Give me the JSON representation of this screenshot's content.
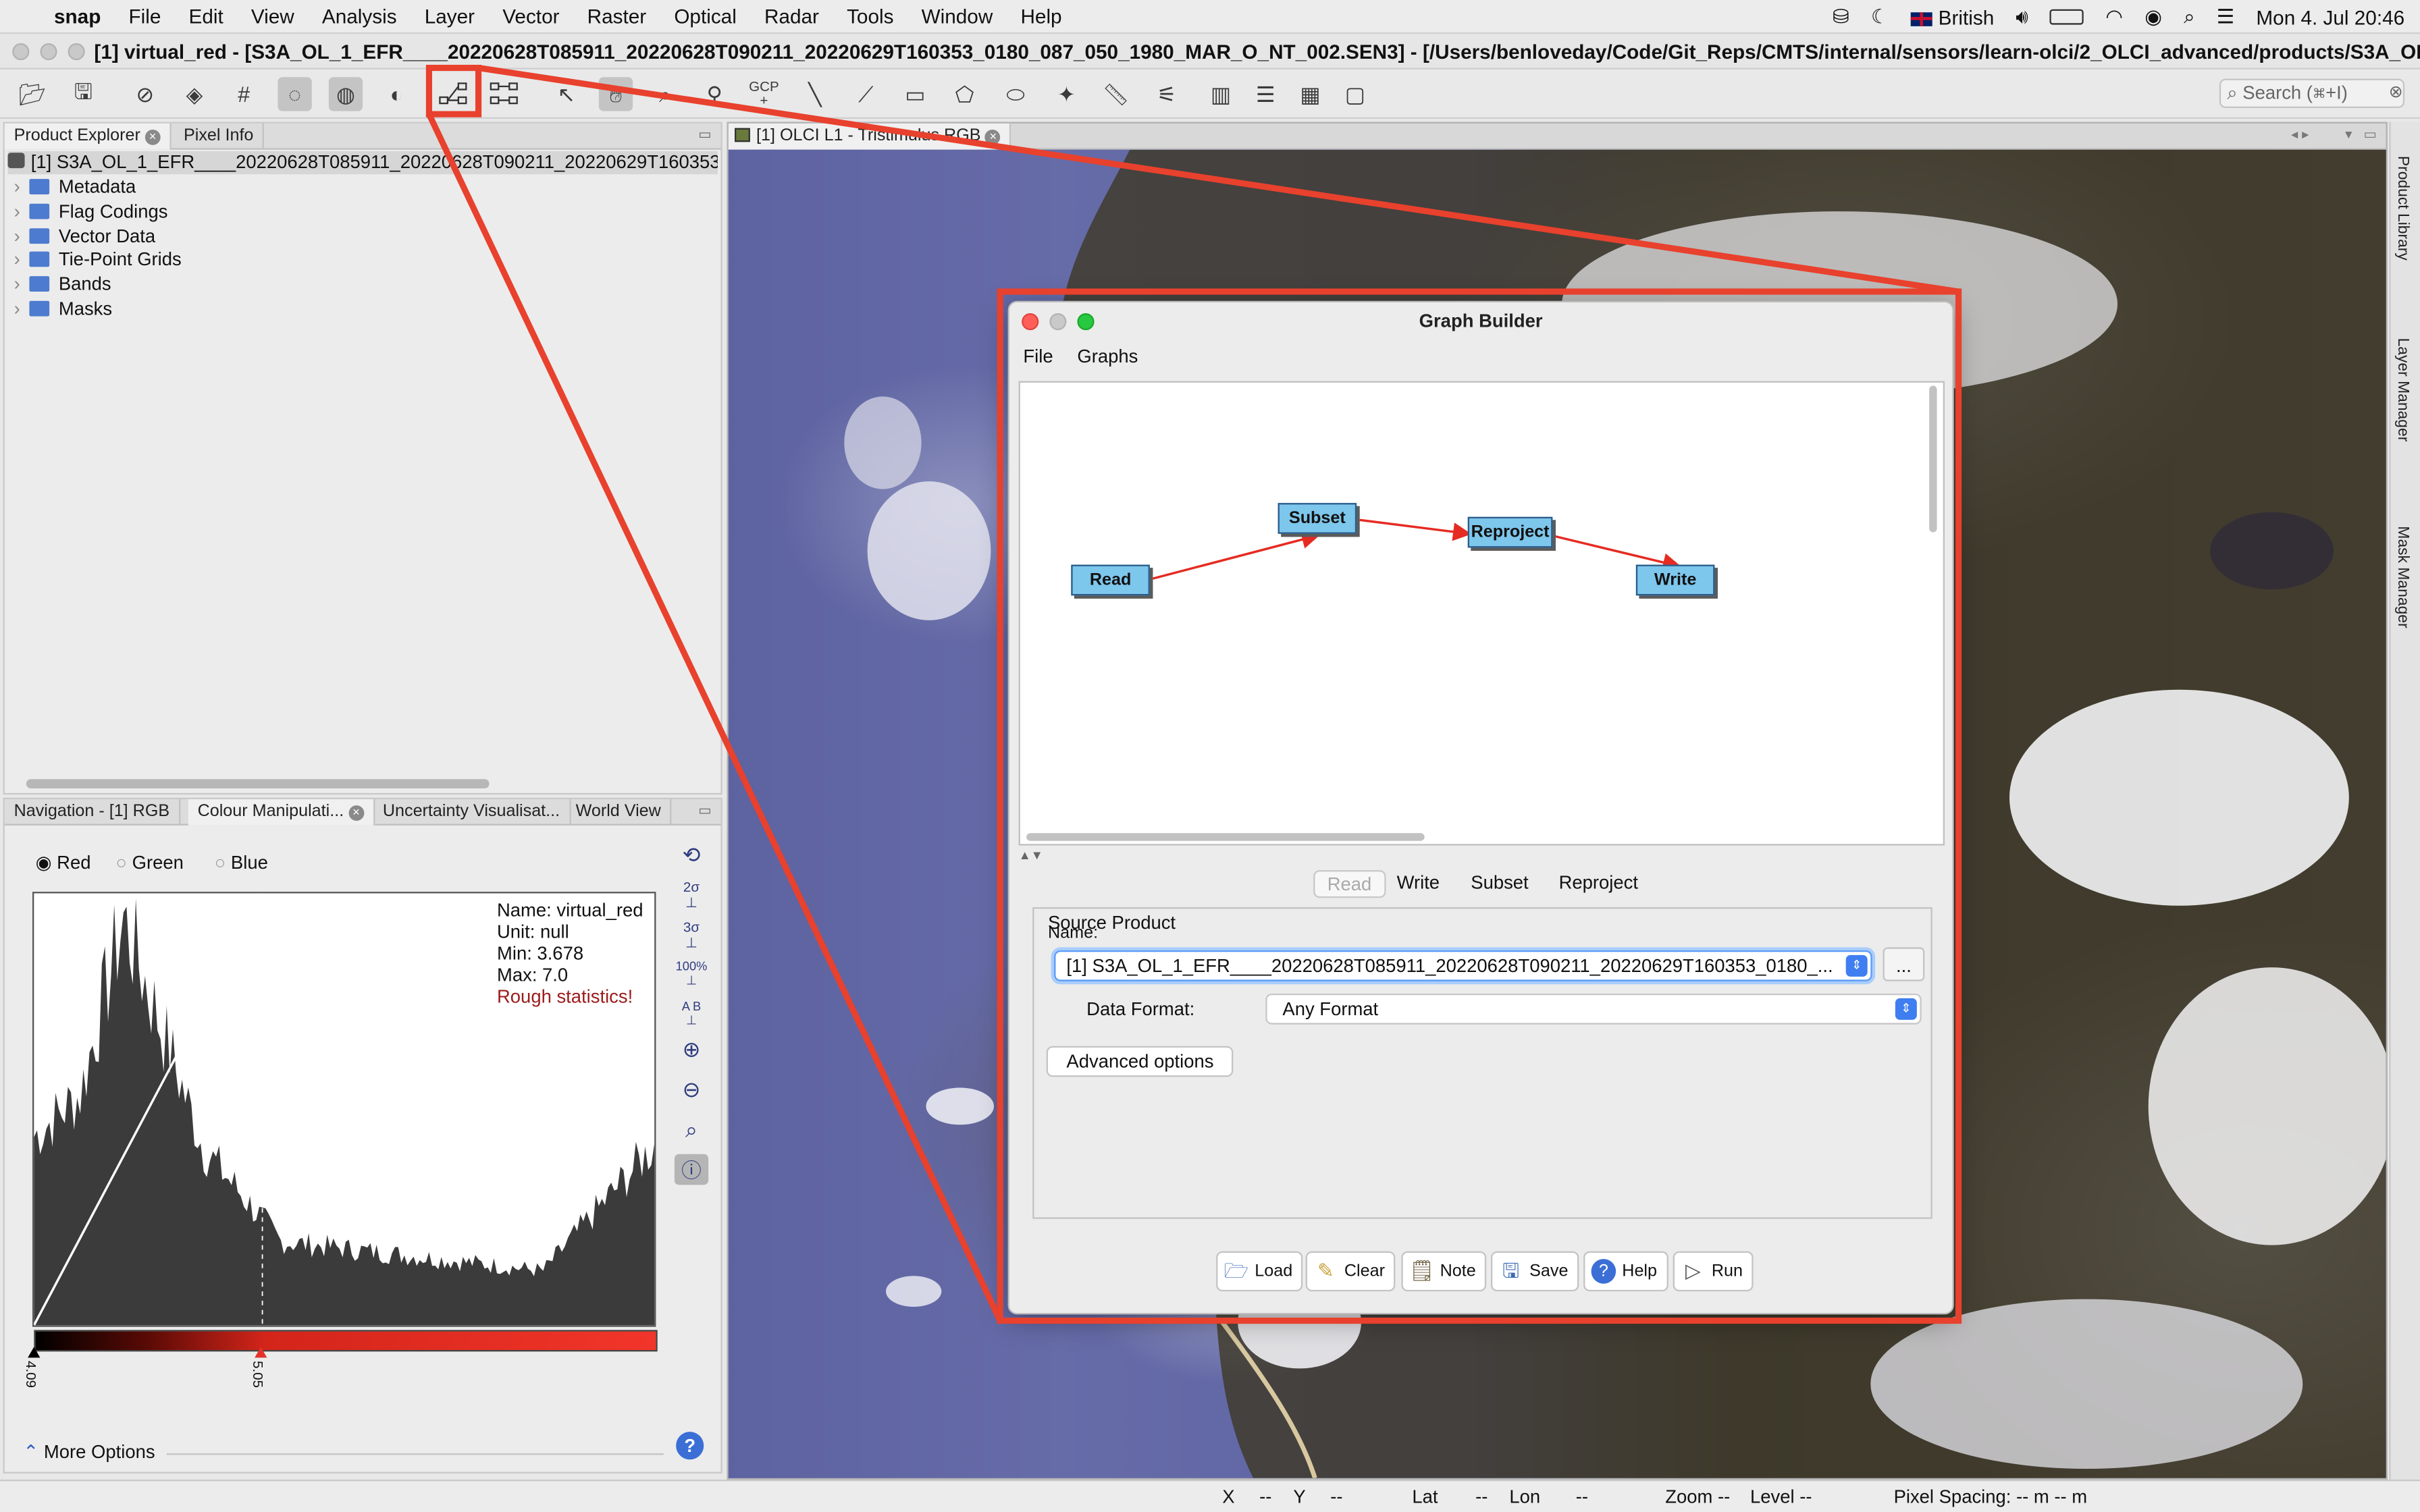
{
  "menubar": {
    "app_name": "snap",
    "items": [
      "File",
      "Edit",
      "View",
      "Analysis",
      "Layer",
      "Vector",
      "Raster",
      "Optical",
      "Radar",
      "Tools",
      "Window",
      "Help"
    ],
    "input_source": "British",
    "clock": "Mon 4. Jul  20:46"
  },
  "window": {
    "title": "[1] virtual_red - [S3A_OL_1_EFR____20220628T085911_20220628T090211_20220629T160353_0180_087_050_1980_MAR_O_NT_002.SEN3] - [/Users/benloveday/Code/Git_Reps/CMTS/internal/sensors/learn-olci/2_OLCI_advanced/products/S3A_OL_1_E..."
  },
  "toolbar": {
    "search_placeholder": "Search (⌘+I)",
    "gcp_label": "GCP"
  },
  "product_explorer": {
    "tabs": [
      "Product Explorer",
      "Pixel Info"
    ],
    "product": "[1] S3A_OL_1_EFR____20220628T085911_20220628T090211_20220629T160353",
    "nodes": [
      "Metadata",
      "Flag Codings",
      "Vector Data",
      "Tie-Point Grids",
      "Bands",
      "Masks"
    ]
  },
  "bottom_tabs": [
    "Navigation - [1] RGB",
    "Colour Manipulati...",
    "Uncertainty Visualisat...",
    "World View"
  ],
  "colour": {
    "channels": [
      "Red",
      "Green",
      "Blue"
    ],
    "selected": "Red",
    "stats": {
      "name": "Name: virtual_red",
      "unit": "Unit: null",
      "min": "Min: 3.678",
      "max": "Max: 7.0",
      "warn": "Rough statistics!"
    },
    "slider_min": "4.09",
    "slider_max": "5.05",
    "more_options": "More Options",
    "side_labels": [
      "2σ",
      "3σ",
      "100%",
      "A B"
    ]
  },
  "image_view": {
    "tab": "[1] OLCI L1 - Tristimulus RGB"
  },
  "right_side": [
    "Product Library",
    "Layer Manager",
    "Mask Manager"
  ],
  "graph_builder": {
    "title": "Graph Builder",
    "menu": [
      "File",
      "Graphs"
    ],
    "nodes": [
      "Read",
      "Subset",
      "Reproject",
      "Write"
    ],
    "tabs": [
      "Read",
      "Write",
      "Subset",
      "Reproject"
    ],
    "selected_tab": "Read",
    "source_product_label": "Source Product",
    "name_label": "Name:",
    "name_value": "[1] S3A_OL_1_EFR____20220628T085911_20220628T090211_20220629T160353_0180_...",
    "browse": "...",
    "data_format_label": "Data Format:",
    "data_format_value": "Any Format",
    "advanced": "Advanced options",
    "buttons": [
      "Load",
      "Clear",
      "Note",
      "Save",
      "Help",
      "Run"
    ]
  },
  "status": {
    "x": "X",
    "x_val": "--",
    "y": "Y",
    "y_val": "--",
    "lat": "Lat",
    "lat_val": "--",
    "lon": "Lon",
    "lon_val": "--",
    "zoom": "Zoom --",
    "level": "Level --",
    "spacing": "Pixel Spacing: -- m -- m"
  },
  "colors": {
    "highlight": "#e8412d",
    "node_fill": "#7dc6ec",
    "edge": "#e52b22"
  }
}
